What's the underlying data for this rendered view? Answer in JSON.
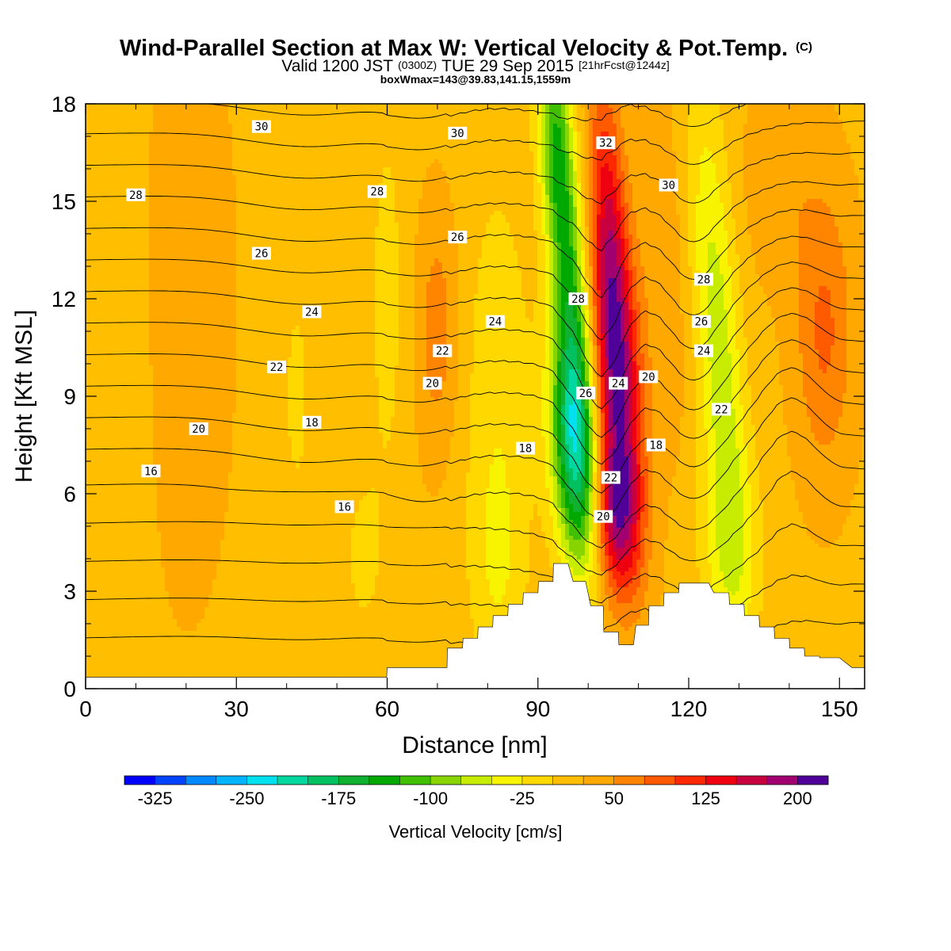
{
  "chart_data": {
    "type": "heatmap",
    "title": "Wind-Parallel Section at Max W: Vertical Velocity & Pot.Temp.",
    "title_suffix": "(C)",
    "subtitle_main": "Valid 1200 JST",
    "subtitle_utc": "(0300Z)",
    "subtitle_date": "TUE 29 Sep 2015",
    "subtitle_fcst": "[21hrFcst@1244z]",
    "subtitle_box": "boxWmax=143@39.83,141.15,1559m",
    "xlabel": "Distance [nm]",
    "ylabel": "Height [Kft MSL]",
    "xlim": [
      0,
      155
    ],
    "ylim": [
      0,
      18
    ],
    "x_ticks": [
      0,
      30,
      60,
      90,
      120,
      150
    ],
    "y_ticks": [
      0,
      3,
      6,
      9,
      12,
      15,
      18
    ],
    "x_tick_labels": [
      "0",
      "30",
      "60",
      "90",
      "120",
      "150"
    ],
    "y_tick_labels": [
      "0",
      "3",
      "6",
      "9",
      "12",
      "15",
      "18"
    ],
    "colorbar": {
      "label": "Vertical Velocity [cm/s]",
      "min": -350,
      "max": 225,
      "step": 25,
      "colors": [
        "#0000ff",
        "#0044ff",
        "#0088ff",
        "#00b4ff",
        "#00e0ee",
        "#00d8a0",
        "#00c060",
        "#10b030",
        "#00a800",
        "#40c000",
        "#88d400",
        "#c8ec00",
        "#f8f400",
        "#ffd800",
        "#ffbe00",
        "#ffa800",
        "#ff8400",
        "#ff5a00",
        "#ff2800",
        "#ee0010",
        "#c80040",
        "#a00070",
        "#500098"
      ],
      "tick_values": [
        -325,
        -250,
        -175,
        -100,
        -25,
        50,
        125,
        200
      ],
      "tick_labels": [
        "-325",
        "-250",
        "-175",
        "-100",
        "-25",
        "50",
        "125",
        "200"
      ]
    },
    "terrain": [
      [
        0,
        0.35
      ],
      [
        30,
        0.35
      ],
      [
        59.9,
        0.35
      ],
      [
        60,
        0.65
      ],
      [
        71.9,
        0.65
      ],
      [
        72,
        1.25
      ],
      [
        75,
        1.25
      ],
      [
        75.1,
        1.55
      ],
      [
        78,
        1.55
      ],
      [
        78.1,
        1.9
      ],
      [
        81,
        1.9
      ],
      [
        81.1,
        2.25
      ],
      [
        84,
        2.25
      ],
      [
        84.1,
        2.6
      ],
      [
        87,
        2.6
      ],
      [
        87.1,
        2.95
      ],
      [
        90,
        2.95
      ],
      [
        90.1,
        3.3
      ],
      [
        93,
        3.3
      ],
      [
        93.1,
        3.85
      ],
      [
        96,
        3.85
      ],
      [
        97,
        3.3
      ],
      [
        99.5,
        3.3
      ],
      [
        100.5,
        2.55
      ],
      [
        103,
        2.55
      ],
      [
        103.1,
        1.75
      ],
      [
        106,
        1.75
      ],
      [
        106.1,
        1.35
      ],
      [
        109,
        1.35
      ],
      [
        109.5,
        1.95
      ],
      [
        112,
        1.95
      ],
      [
        112.1,
        2.55
      ],
      [
        115,
        2.55
      ],
      [
        115.1,
        2.95
      ],
      [
        118,
        2.95
      ],
      [
        118.1,
        3.25
      ],
      [
        124,
        3.25
      ],
      [
        125,
        2.95
      ],
      [
        128,
        2.95
      ],
      [
        128.1,
        2.6
      ],
      [
        131,
        2.6
      ],
      [
        131.1,
        2.25
      ],
      [
        134,
        2.25
      ],
      [
        134.1,
        1.9
      ],
      [
        137,
        1.9
      ],
      [
        137.1,
        1.55
      ],
      [
        140,
        1.55
      ],
      [
        140.1,
        1.25
      ],
      [
        143,
        1.25
      ],
      [
        143.1,
        1.0
      ],
      [
        146,
        1.0
      ],
      [
        146.1,
        0.95
      ],
      [
        150,
        0.95
      ],
      [
        152.5,
        0.65
      ],
      [
        155,
        0.65
      ]
    ],
    "w_features": [
      {
        "x": 97,
        "y": 7.4,
        "sx": 3.2,
        "sy": 2.6,
        "tilt": -0.32,
        "amp": -195
      },
      {
        "x": 96.5,
        "y": 12.5,
        "sx": 2.4,
        "sy": 4.5,
        "tilt": -0.38,
        "amp": -125
      },
      {
        "x": 93,
        "y": 16.8,
        "sx": 2.2,
        "sy": 2.6,
        "tilt": -0.3,
        "amp": -90
      },
      {
        "x": 106,
        "y": 9.2,
        "sx": 3.3,
        "sy": 3.6,
        "tilt": -0.3,
        "amp": 165
      },
      {
        "x": 104,
        "y": 14.5,
        "sx": 2.4,
        "sy": 3.5,
        "tilt": -0.3,
        "amp": 90
      },
      {
        "x": 105.5,
        "y": 5.2,
        "sx": 3.2,
        "sy": 1.6,
        "tilt": -0.2,
        "amp": 110
      },
      {
        "x": 126,
        "y": 10.5,
        "sx": 3.2,
        "sy": 5.5,
        "tilt": -0.42,
        "amp": -85
      },
      {
        "x": 128,
        "y": 4.2,
        "sx": 4.5,
        "sy": 2.2,
        "tilt": 0,
        "amp": -45
      },
      {
        "x": 147,
        "y": 11,
        "sx": 4.0,
        "sy": 3.0,
        "tilt": 0,
        "amp": 60
      },
      {
        "x": 138,
        "y": 15.5,
        "sx": 5.0,
        "sy": 2.0,
        "tilt": 0,
        "amp": 25
      },
      {
        "x": 70,
        "y": 11,
        "sx": 3.0,
        "sy": 2.6,
        "tilt": 0,
        "amp": 45
      },
      {
        "x": 82,
        "y": 9,
        "sx": 5.0,
        "sy": 5.0,
        "tilt": 0,
        "amp": -38
      },
      {
        "x": 82,
        "y": 3.5,
        "sx": 4.0,
        "sy": 2.5,
        "tilt": 0,
        "amp": -30
      },
      {
        "x": 60,
        "y": 12,
        "sx": 3.0,
        "sy": 5.0,
        "tilt": 0,
        "amp": -28
      },
      {
        "x": 55,
        "y": 4,
        "sx": 3.0,
        "sy": 2.0,
        "tilt": 0,
        "amp": -25
      },
      {
        "x": 42,
        "y": 9,
        "sx": 4.0,
        "sy": 5.0,
        "tilt": 0,
        "amp": -22
      },
      {
        "x": 5,
        "y": 10,
        "sx": 5.0,
        "sy": 6.0,
        "tilt": 0,
        "amp": -20
      },
      {
        "x": 20,
        "y": 12,
        "sx": 6.0,
        "sy": 6.0,
        "tilt": 0,
        "amp": 22
      },
      {
        "x": 115,
        "y": 13.5,
        "sx": 3.0,
        "sy": 4.0,
        "tilt": -0.3,
        "amp": 25
      }
    ],
    "w_background": 20,
    "theta_levels": [
      16,
      17,
      18,
      19,
      20,
      21,
      22,
      23,
      24,
      25,
      26,
      27,
      28,
      29,
      30,
      31,
      32
    ],
    "contour_labels": [
      {
        "text": "30",
        "x": 35,
        "y": 17.3
      },
      {
        "text": "30",
        "x": 74,
        "y": 17.1
      },
      {
        "text": "32",
        "x": 103.5,
        "y": 16.8
      },
      {
        "text": "30",
        "x": 116,
        "y": 15.5
      },
      {
        "text": "28",
        "x": 10,
        "y": 15.2
      },
      {
        "text": "28",
        "x": 58,
        "y": 15.3
      },
      {
        "text": "26",
        "x": 35,
        "y": 13.4
      },
      {
        "text": "26",
        "x": 74,
        "y": 13.9
      },
      {
        "text": "28",
        "x": 98,
        "y": 12.0
      },
      {
        "text": "28",
        "x": 123,
        "y": 12.6
      },
      {
        "text": "24",
        "x": 45,
        "y": 11.6
      },
      {
        "text": "24",
        "x": 81.5,
        "y": 11.3
      },
      {
        "text": "26",
        "x": 122.5,
        "y": 11.3
      },
      {
        "text": "22",
        "x": 71,
        "y": 10.4
      },
      {
        "text": "24",
        "x": 123,
        "y": 10.4
      },
      {
        "text": "22",
        "x": 38,
        "y": 9.9
      },
      {
        "text": "20",
        "x": 69,
        "y": 9.4
      },
      {
        "text": "24",
        "x": 106,
        "y": 9.4
      },
      {
        "text": "20",
        "x": 112,
        "y": 9.6
      },
      {
        "text": "26",
        "x": 99.5,
        "y": 9.1
      },
      {
        "text": "22",
        "x": 126.5,
        "y": 8.6
      },
      {
        "text": "20",
        "x": 22.5,
        "y": 8.0
      },
      {
        "text": "18",
        "x": 45,
        "y": 8.2
      },
      {
        "text": "18",
        "x": 87.5,
        "y": 7.4
      },
      {
        "text": "18",
        "x": 113.5,
        "y": 7.5
      },
      {
        "text": "16",
        "x": 13,
        "y": 6.7
      },
      {
        "text": "22",
        "x": 104.5,
        "y": 6.5
      },
      {
        "text": "16",
        "x": 51.5,
        "y": 5.6
      },
      {
        "text": "20",
        "x": 103,
        "y": 5.3
      }
    ]
  }
}
